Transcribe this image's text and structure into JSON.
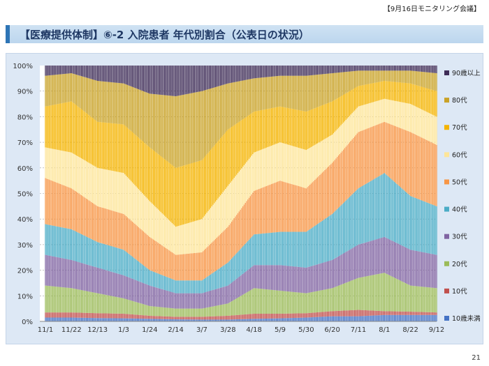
{
  "header": {
    "meeting_tag": "【9月16日モニタリング会議】",
    "title": "【医療提供体制】⑥-2 入院患者 年代別割合（公表日の状況）"
  },
  "footer": {
    "page_number": "21"
  },
  "chart_data": {
    "type": "bar",
    "stacked": true,
    "percent": true,
    "ylim": [
      0,
      100
    ],
    "yticks": [
      "0%",
      "10%",
      "20%",
      "30%",
      "40%",
      "50%",
      "60%",
      "70%",
      "80%",
      "90%",
      "100%"
    ],
    "xtick_labels": [
      "11/1",
      "11/22",
      "12/13",
      "1/3",
      "1/24",
      "2/14",
      "3/7",
      "3/28",
      "4/18",
      "5/9",
      "5/30",
      "6/20",
      "7/11",
      "8/1",
      "8/22",
      "9/12"
    ],
    "legend_position": "right",
    "grid": true,
    "anchor_note": "cumulative upper boundaries (%) read at each x tick label",
    "series": [
      {
        "name": "10歳未満",
        "color": "#4472c4",
        "upper": [
          1.5,
          1.5,
          1.3,
          1.2,
          1.0,
          0.8,
          0.7,
          0.7,
          1.0,
          1.2,
          1.5,
          2.0,
          2.0,
          2.5,
          2.5,
          2.5
        ]
      },
      {
        "name": "10代",
        "color": "#c0504d",
        "upper": [
          3.5,
          3.5,
          3.2,
          3.0,
          2.2,
          1.8,
          1.8,
          2.2,
          3.0,
          3.0,
          3.2,
          4.0,
          4.5,
          4.0,
          3.8,
          3.5
        ]
      },
      {
        "name": "20代",
        "color": "#9bbb59",
        "upper": [
          14,
          13,
          11,
          9,
          6,
          5,
          5,
          7,
          13,
          12,
          11,
          13,
          17,
          19,
          14,
          13
        ]
      },
      {
        "name": "30代",
        "color": "#8064a2",
        "upper": [
          26,
          24,
          21,
          18,
          14,
          11,
          11,
          14,
          22,
          22,
          21,
          24,
          30,
          33,
          28,
          26
        ]
      },
      {
        "name": "40代",
        "color": "#4bacc6",
        "upper": [
          38,
          36,
          31,
          28,
          20,
          16,
          16,
          23,
          34,
          35,
          35,
          42,
          52,
          58,
          49,
          45
        ]
      },
      {
        "name": "50代",
        "color": "#f79646",
        "upper": [
          56,
          52,
          45,
          42,
          33,
          26,
          27,
          37,
          51,
          55,
          52,
          62,
          74,
          78,
          74,
          69
        ]
      },
      {
        "name": "60代",
        "color": "#fde599",
        "upper": [
          68,
          66,
          60,
          58,
          47,
          37,
          40,
          53,
          66,
          70,
          67,
          73,
          84,
          87,
          85,
          80
        ]
      },
      {
        "name": "70代",
        "color": "#f4b400",
        "upper": [
          84,
          86,
          78,
          77,
          68,
          60,
          63,
          75,
          82,
          84,
          82,
          86,
          92,
          94,
          93,
          90
        ]
      },
      {
        "name": "80代",
        "color": "#c9a227",
        "upper": [
          96,
          97,
          94,
          93,
          89,
          88,
          90,
          93,
          95,
          96,
          96,
          97,
          98,
          98,
          98,
          97
        ]
      },
      {
        "name": "90歳以上",
        "color": "#3e2c57",
        "upper": [
          100,
          100,
          100,
          100,
          100,
          100,
          100,
          100,
          100,
          100,
          100,
          100,
          100,
          100,
          100,
          100
        ]
      }
    ]
  }
}
